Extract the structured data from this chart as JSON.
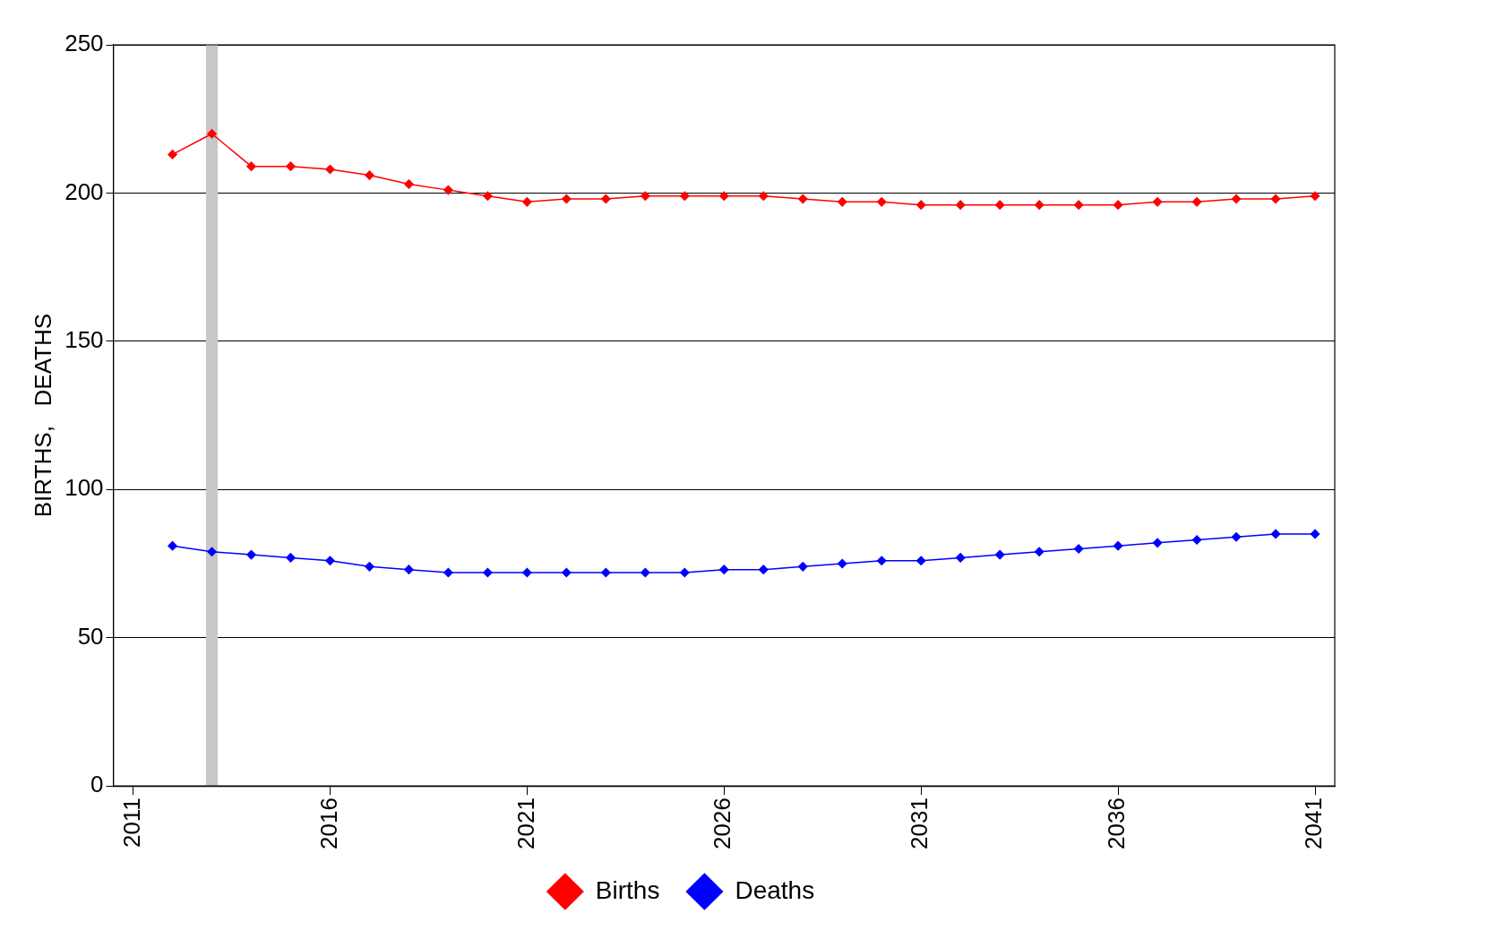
{
  "chart_data": {
    "type": "line",
    "ylabel": "BIRTHS,   DEATHS",
    "x": [
      2012,
      2013,
      2014,
      2015,
      2016,
      2017,
      2018,
      2019,
      2020,
      2021,
      2022,
      2023,
      2024,
      2025,
      2026,
      2027,
      2028,
      2029,
      2030,
      2031,
      2032,
      2033,
      2034,
      2035,
      2036,
      2037,
      2038,
      2039,
      2040,
      2041
    ],
    "series": [
      {
        "name": "Births",
        "color": "#ff0000",
        "values": [
          213,
          220,
          209,
          209,
          208,
          206,
          203,
          201,
          199,
          197,
          198,
          198,
          199,
          199,
          199,
          199,
          198,
          197,
          197,
          196,
          196,
          196,
          196,
          196,
          196,
          197,
          197,
          198,
          198,
          199
        ]
      },
      {
        "name": "Deaths",
        "color": "#0000ff",
        "values": [
          81,
          79,
          78,
          77,
          76,
          74,
          73,
          72,
          72,
          72,
          72,
          72,
          72,
          72,
          73,
          73,
          74,
          75,
          76,
          76,
          77,
          78,
          79,
          80,
          81,
          82,
          83,
          84,
          85,
          85
        ]
      }
    ],
    "xlim": [
      2010.5,
      2041.5
    ],
    "xticks": [
      2011,
      2016,
      2021,
      2026,
      2031,
      2036,
      2041
    ],
    "ylim": [
      0,
      250
    ],
    "yticks": [
      0,
      50,
      100,
      150,
      200,
      250
    ],
    "bands": [
      {
        "axis": "x",
        "from": 2012.85,
        "to": 2013.15,
        "color": "#c8c8c8"
      }
    ],
    "grid": "y",
    "legend": "bottom",
    "marker": "diamond",
    "line_style": "solid"
  }
}
